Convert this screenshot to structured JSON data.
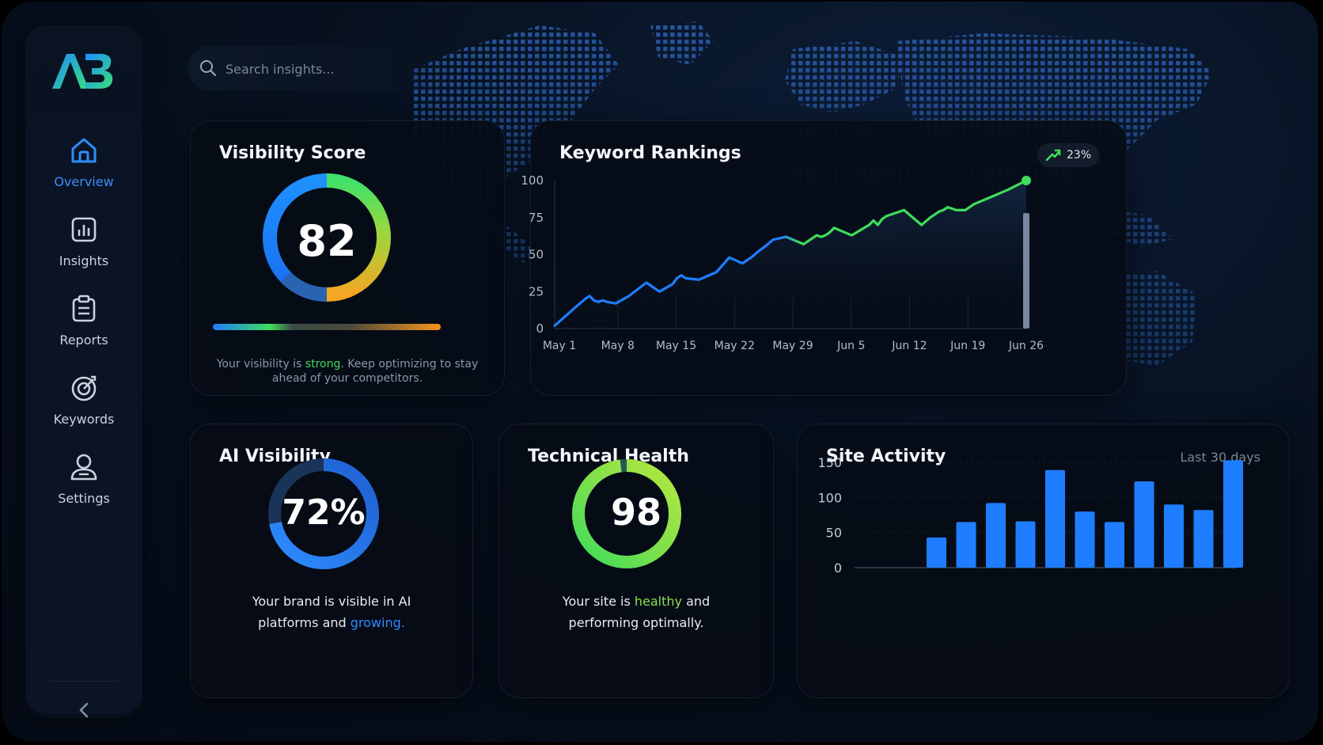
{
  "brand": {
    "logo_text": "AB"
  },
  "search": {
    "placeholder": "Search insights..."
  },
  "sidebar": {
    "items": [
      {
        "label": "Overview",
        "icon": "home-icon",
        "active": true
      },
      {
        "label": "Insights",
        "icon": "bar-chart-icon",
        "active": false
      },
      {
        "label": "Reports",
        "icon": "clipboard-icon",
        "active": false
      },
      {
        "label": "Keywords",
        "icon": "target-icon",
        "active": false
      },
      {
        "label": "Settings",
        "icon": "user-settings-icon",
        "active": false
      }
    ],
    "collapse_icon": "chevron-left-icon"
  },
  "visibility": {
    "title": "Visibility Score",
    "score": "82",
    "desc_before": "Your visibility is ",
    "desc_highlight": "strong",
    "desc_after": ". Keep optimizing to stay ahead of your competitors."
  },
  "keyword": {
    "title": "Keyword Rankings",
    "badge": "23%",
    "badge_icon": "trend-up-icon"
  },
  "ai": {
    "title": "AI Visibility",
    "value": "72%",
    "percent": 72,
    "desc_line1": "Your brand is visible in AI",
    "desc_before": "platforms and ",
    "desc_highlight": "growing."
  },
  "tech": {
    "title": "Technical Health",
    "value": "98",
    "percent": 98,
    "desc_before": "Your site is ",
    "desc_highlight": "healthy",
    "desc_after": " and",
    "desc_line2": "performing optimally."
  },
  "activity": {
    "title": "Site Activity",
    "range": "Last 30 days"
  },
  "colors": {
    "accent_blue": "#1f7dff",
    "accent_green": "#3fdc5a",
    "accent_orange": "#f5a623",
    "healthy_green": "#8be04e"
  },
  "chart_data": [
    {
      "type": "line",
      "title": "Keyword Rankings",
      "x_ticks": [
        "May 1",
        "May 8",
        "May 15",
        "May 22",
        "May 29",
        "Jun 5",
        "Jun 12",
        "Jun 19",
        "Jun 26"
      ],
      "y_ticks": [
        0,
        25,
        50,
        75,
        100
      ],
      "ylim": [
        0,
        100
      ],
      "grid": false,
      "x": [
        0,
        5,
        7,
        8,
        9,
        10,
        11,
        12,
        14,
        17,
        21,
        24,
        27,
        28,
        29,
        30,
        33,
        37,
        40,
        43,
        45,
        47,
        48,
        50,
        53,
        57,
        60,
        61,
        62,
        63,
        64,
        68,
        72,
        73,
        74,
        75,
        76,
        80,
        84,
        86,
        88,
        89,
        90,
        91,
        92,
        94,
        95,
        96,
        100,
        104,
        108
      ],
      "values": [
        2,
        15,
        20,
        22,
        19,
        18,
        19,
        18,
        17,
        22,
        31,
        25,
        30,
        34,
        36,
        34,
        33,
        38,
        48,
        44,
        48,
        53,
        55,
        60,
        62,
        57,
        63,
        62,
        63,
        65,
        68,
        63,
        70,
        73,
        70,
        74,
        76,
        80,
        70,
        75,
        79,
        80,
        82,
        81,
        80,
        80,
        82,
        84,
        89,
        94,
        100
      ],
      "highlight_index": 50
    },
    {
      "type": "bar",
      "title": "Site Activity",
      "y_ticks": [
        0,
        50,
        100,
        150
      ],
      "ylim": [
        0,
        150
      ],
      "values": [
        43,
        65,
        92,
        66,
        139,
        80,
        65,
        123,
        90,
        82,
        153
      ]
    }
  ]
}
